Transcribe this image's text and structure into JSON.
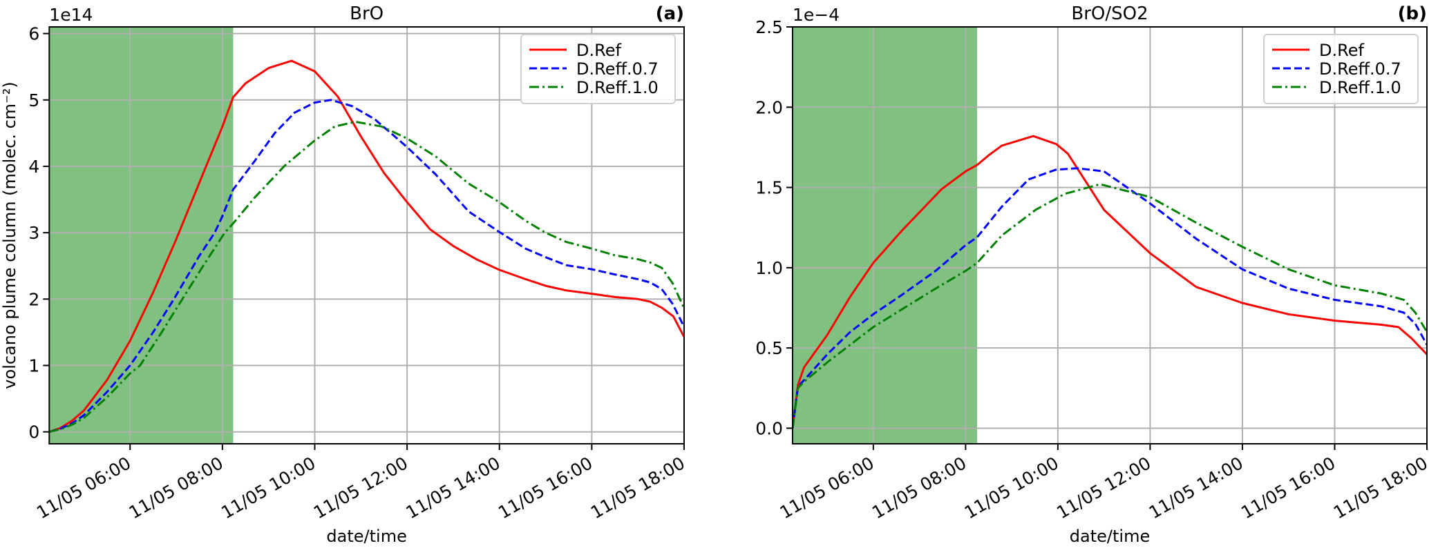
{
  "chart_data": [
    {
      "type": "line",
      "title": "BrO",
      "panel_label": "(a)",
      "xlabel": "date/time",
      "ylabel": "volcano plume column (molec. cm⁻²)",
      "y_offset_text": "1e14",
      "date_prefix": "11/05",
      "xlim": [
        "04:15",
        "18:00"
      ],
      "ylim": [
        -0.18,
        6.1
      ],
      "xticks": [
        "06:00",
        "08:00",
        "10:00",
        "12:00",
        "14:00",
        "16:00",
        "18:00"
      ],
      "xtick_labels": [
        "11/05 06:00",
        "11/05 08:00",
        "11/05 10:00",
        "11/05 12:00",
        "11/05 14:00",
        "11/05 16:00",
        "11/05 18:00"
      ],
      "yticks": [
        0,
        1,
        2,
        3,
        4,
        5,
        6
      ],
      "ytick_labels": [
        "0",
        "1",
        "2",
        "3",
        "4",
        "5",
        "6"
      ],
      "grid": true,
      "shaded_span": {
        "from": "04:15",
        "to": "08:14",
        "color": "#80c080"
      },
      "legend_position": "top-right",
      "series": [
        {
          "name": "D.Ref",
          "color": "#ff0000",
          "style": "solid",
          "x": [
            "04:15",
            "04:30",
            "04:45",
            "05:00",
            "05:30",
            "06:00",
            "06:30",
            "07:00",
            "07:30",
            "08:00",
            "08:14",
            "08:30",
            "09:00",
            "09:30",
            "10:00",
            "10:30",
            "11:00",
            "11:30",
            "12:00",
            "12:30",
            "13:00",
            "13:30",
            "14:00",
            "14:34",
            "15:00",
            "15:27",
            "16:00",
            "16:30",
            "17:00",
            "17:16",
            "17:31",
            "17:46",
            "18:00"
          ],
          "values": [
            0.0,
            0.06,
            0.17,
            0.32,
            0.78,
            1.37,
            2.1,
            2.9,
            3.75,
            4.6,
            5.04,
            5.25,
            5.48,
            5.59,
            5.43,
            5.05,
            4.45,
            3.9,
            3.46,
            3.05,
            2.8,
            2.6,
            2.44,
            2.3,
            2.2,
            2.13,
            2.08,
            2.03,
            2.0,
            1.96,
            1.87,
            1.74,
            1.43
          ]
        },
        {
          "name": "D.Reff.0.7",
          "color": "#0000ff",
          "style": "dashed",
          "x": [
            "04:15",
            "04:30",
            "04:45",
            "05:00",
            "05:30",
            "06:00",
            "06:30",
            "06:57",
            "07:30",
            "07:50",
            "08:00",
            "08:14",
            "08:42",
            "09:08",
            "09:34",
            "10:00",
            "10:21",
            "10:48",
            "11:18",
            "12:00",
            "12:37",
            "13:20",
            "14:00",
            "14:34",
            "15:00",
            "15:27",
            "16:00",
            "16:30",
            "17:00",
            "17:16",
            "17:31",
            "17:45",
            "18:00"
          ],
          "values": [
            0.0,
            0.05,
            0.13,
            0.25,
            0.6,
            1.0,
            1.5,
            2.0,
            2.65,
            3.0,
            3.25,
            3.65,
            4.08,
            4.5,
            4.81,
            4.96,
            5.0,
            4.91,
            4.71,
            4.29,
            3.88,
            3.32,
            3.01,
            2.76,
            2.63,
            2.51,
            2.45,
            2.37,
            2.3,
            2.25,
            2.15,
            1.93,
            1.58
          ]
        },
        {
          "name": "D.Reff.1.0",
          "color": "#008000",
          "style": "dashdot",
          "x": [
            "04:15",
            "04:30",
            "04:45",
            "05:00",
            "05:30",
            "06:00",
            "06:13",
            "06:40",
            "07:08",
            "07:35",
            "08:03",
            "08:14",
            "08:42",
            "09:21",
            "10:00",
            "10:26",
            "10:53",
            "11:27",
            "12:00",
            "12:37",
            "13:20",
            "14:00",
            "14:34",
            "15:00",
            "15:27",
            "16:00",
            "16:30",
            "17:00",
            "17:16",
            "17:31",
            "17:45",
            "18:00"
          ],
          "values": [
            0.0,
            0.04,
            0.11,
            0.21,
            0.52,
            0.88,
            1.0,
            1.48,
            2.0,
            2.5,
            3.0,
            3.14,
            3.53,
            4.01,
            4.39,
            4.6,
            4.67,
            4.6,
            4.42,
            4.15,
            3.74,
            3.46,
            3.18,
            3.0,
            2.86,
            2.76,
            2.66,
            2.6,
            2.55,
            2.47,
            2.24,
            1.86
          ]
        }
      ]
    },
    {
      "type": "line",
      "title": "BrO/SO2",
      "panel_label": "(b)",
      "xlabel": "date/time",
      "ylabel": "",
      "y_offset_text": "1e−4",
      "date_prefix": "11/05",
      "xlim": [
        "04:15",
        "18:00"
      ],
      "ylim": [
        -0.097,
        2.5
      ],
      "xticks": [
        "06:00",
        "08:00",
        "10:00",
        "12:00",
        "14:00",
        "16:00",
        "18:00"
      ],
      "xtick_labels": [
        "11/05 06:00",
        "11/05 08:00",
        "11/05 10:00",
        "11/05 12:00",
        "11/05 14:00",
        "11/05 16:00",
        "11/05 18:00"
      ],
      "yticks": [
        0,
        0.5,
        1.0,
        1.5,
        2.0,
        2.5
      ],
      "ytick_labels": [
        "0.0",
        "0.5",
        "1.0",
        "1.5",
        "2.0",
        "2.5"
      ],
      "grid": true,
      "shaded_span": {
        "from": "04:15",
        "to": "08:15",
        "color": "#80c080"
      },
      "legend_position": "top-right",
      "series": [
        {
          "name": "D.Ref",
          "color": "#ff0000",
          "style": "solid",
          "x": [
            "04:15",
            "04:22",
            "04:30",
            "05:00",
            "05:30",
            "06:00",
            "06:37",
            "07:29",
            "08:00",
            "08:15",
            "08:30",
            "08:47",
            "09:28",
            "09:58",
            "10:13",
            "11:00",
            "12:00",
            "13:00",
            "14:00",
            "15:00",
            "16:00",
            "17:00",
            "17:23",
            "17:40",
            "18:00"
          ],
          "values": [
            0.0,
            0.27,
            0.38,
            0.58,
            0.82,
            1.03,
            1.23,
            1.49,
            1.6,
            1.64,
            1.7,
            1.76,
            1.82,
            1.77,
            1.71,
            1.36,
            1.09,
            0.88,
            0.78,
            0.71,
            0.67,
            0.645,
            0.63,
            0.56,
            0.46
          ]
        },
        {
          "name": "D.Reff.0.7",
          "color": "#0000ff",
          "style": "dashed",
          "x": [
            "04:15",
            "04:22",
            "04:30",
            "05:00",
            "05:30",
            "06:00",
            "06:37",
            "07:21",
            "08:00",
            "08:15",
            "08:47",
            "09:22",
            "09:57",
            "10:25",
            "11:00",
            "12:00",
            "13:00",
            "14:00",
            "15:00",
            "16:00",
            "17:00",
            "17:30",
            "17:45",
            "18:00"
          ],
          "values": [
            0.0,
            0.26,
            0.3,
            0.46,
            0.6,
            0.71,
            0.83,
            0.98,
            1.14,
            1.19,
            1.38,
            1.55,
            1.61,
            1.62,
            1.6,
            1.4,
            1.18,
            0.99,
            0.87,
            0.8,
            0.76,
            0.72,
            0.65,
            0.52
          ]
        },
        {
          "name": "D.Reff.1.0",
          "color": "#008000",
          "style": "dashdot",
          "x": [
            "04:15",
            "04:22",
            "04:30",
            "05:00",
            "05:30",
            "06:00",
            "06:37",
            "07:21",
            "08:00",
            "08:15",
            "08:47",
            "09:31",
            "10:09",
            "10:55",
            "12:00",
            "13:00",
            "14:00",
            "15:00",
            "16:00",
            "17:00",
            "17:30",
            "17:45",
            "18:00"
          ],
          "values": [
            0.0,
            0.25,
            0.29,
            0.41,
            0.52,
            0.63,
            0.74,
            0.87,
            0.98,
            1.03,
            1.2,
            1.36,
            1.46,
            1.52,
            1.44,
            1.28,
            1.13,
            0.99,
            0.89,
            0.84,
            0.8,
            0.72,
            0.6
          ]
        }
      ]
    }
  ]
}
